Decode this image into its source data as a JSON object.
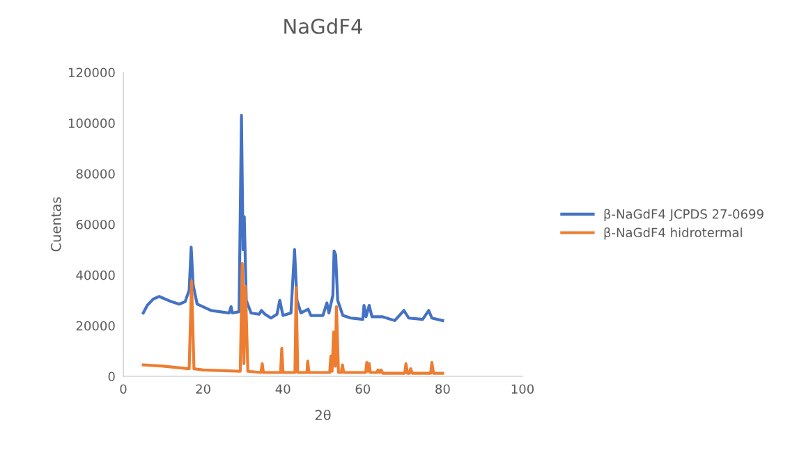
{
  "chart_data": {
    "type": "line",
    "title": "NaGdF4",
    "xlabel": "2θ",
    "ylabel": "Cuentas",
    "xlim": [
      0,
      100
    ],
    "xticks": [
      0,
      20,
      40,
      60,
      80,
      100
    ],
    "ylim": [
      0,
      120000
    ],
    "yticks": [
      0,
      20000,
      40000,
      60000,
      80000,
      100000,
      120000
    ],
    "grid": false,
    "legend": "right",
    "marker": "none",
    "line_style": "solid",
    "series": [
      {
        "name": "β-NaGdF4 JCPDS 27-0699",
        "color": "#4472c4",
        "x": [
          5,
          6,
          7.5,
          9,
          12,
          14,
          15.5,
          16.5,
          17.0,
          17.5,
          18.5,
          22,
          26.5,
          27,
          27.3,
          29,
          29.6,
          30.0,
          30.3,
          30.8,
          32,
          34,
          34.6,
          35.5,
          37,
          38.5,
          39.2,
          40,
          42,
          42.9,
          43.5,
          44.5,
          46.3,
          47,
          50,
          51,
          51.5,
          52.5,
          52.8,
          53.2,
          53.7,
          55,
          57,
          60,
          60.3,
          60.8,
          61.6,
          62.3,
          65,
          68,
          70.3,
          71.5,
          75,
          76.5,
          77.3,
          80
        ],
        "values": [
          25000,
          28000,
          30500,
          31500,
          29500,
          28500,
          29500,
          34000,
          51000,
          36000,
          28500,
          26000,
          25000,
          27500,
          25000,
          25500,
          103000,
          50000,
          63000,
          30000,
          25000,
          24500,
          26000,
          24500,
          23000,
          24500,
          30000,
          24000,
          25000,
          50000,
          30000,
          25000,
          26500,
          24000,
          24000,
          29000,
          25000,
          32000,
          49500,
          48000,
          30000,
          24000,
          23000,
          22500,
          28000,
          23500,
          28000,
          23500,
          23500,
          22000,
          26000,
          23000,
          22500,
          26000,
          23000,
          22000
        ]
      },
      {
        "name": "β-NaGdF4 hidrotermal",
        "color": "#ed7d31",
        "x": [
          5,
          10,
          16.5,
          17.1,
          17.7,
          20,
          29.3,
          29.8,
          30.2,
          30.6,
          31.2,
          34.5,
          34.8,
          35.1,
          39.4,
          39.7,
          40.0,
          43.0,
          43.3,
          43.7,
          46.0,
          46.2,
          46.5,
          51.7,
          52.0,
          52.3,
          52.7,
          53.1,
          53.4,
          53.9,
          54.6,
          54.9,
          55.2,
          60.7,
          61.0,
          61.3,
          61.6,
          61.9,
          63.5,
          63.8,
          64.2,
          64.6,
          65,
          70.5,
          70.8,
          71.2,
          71.7,
          72.0,
          72.4,
          77.0,
          77.3,
          77.7,
          80
        ],
        "values": [
          4500,
          4000,
          3000,
          37500,
          3000,
          2500,
          2000,
          44500,
          5000,
          35500,
          2000,
          1500,
          5000,
          1500,
          1500,
          11000,
          1500,
          1500,
          35000,
          1500,
          1500,
          6000,
          1500,
          1500,
          8000,
          2000,
          17500,
          4000,
          27500,
          1500,
          1500,
          4500,
          1500,
          1500,
          5500,
          2000,
          5000,
          1500,
          1500,
          2500,
          1500,
          2500,
          1200,
          1200,
          5000,
          1200,
          1200,
          3000,
          1200,
          1200,
          5500,
          1200,
          1200
        ]
      }
    ]
  }
}
